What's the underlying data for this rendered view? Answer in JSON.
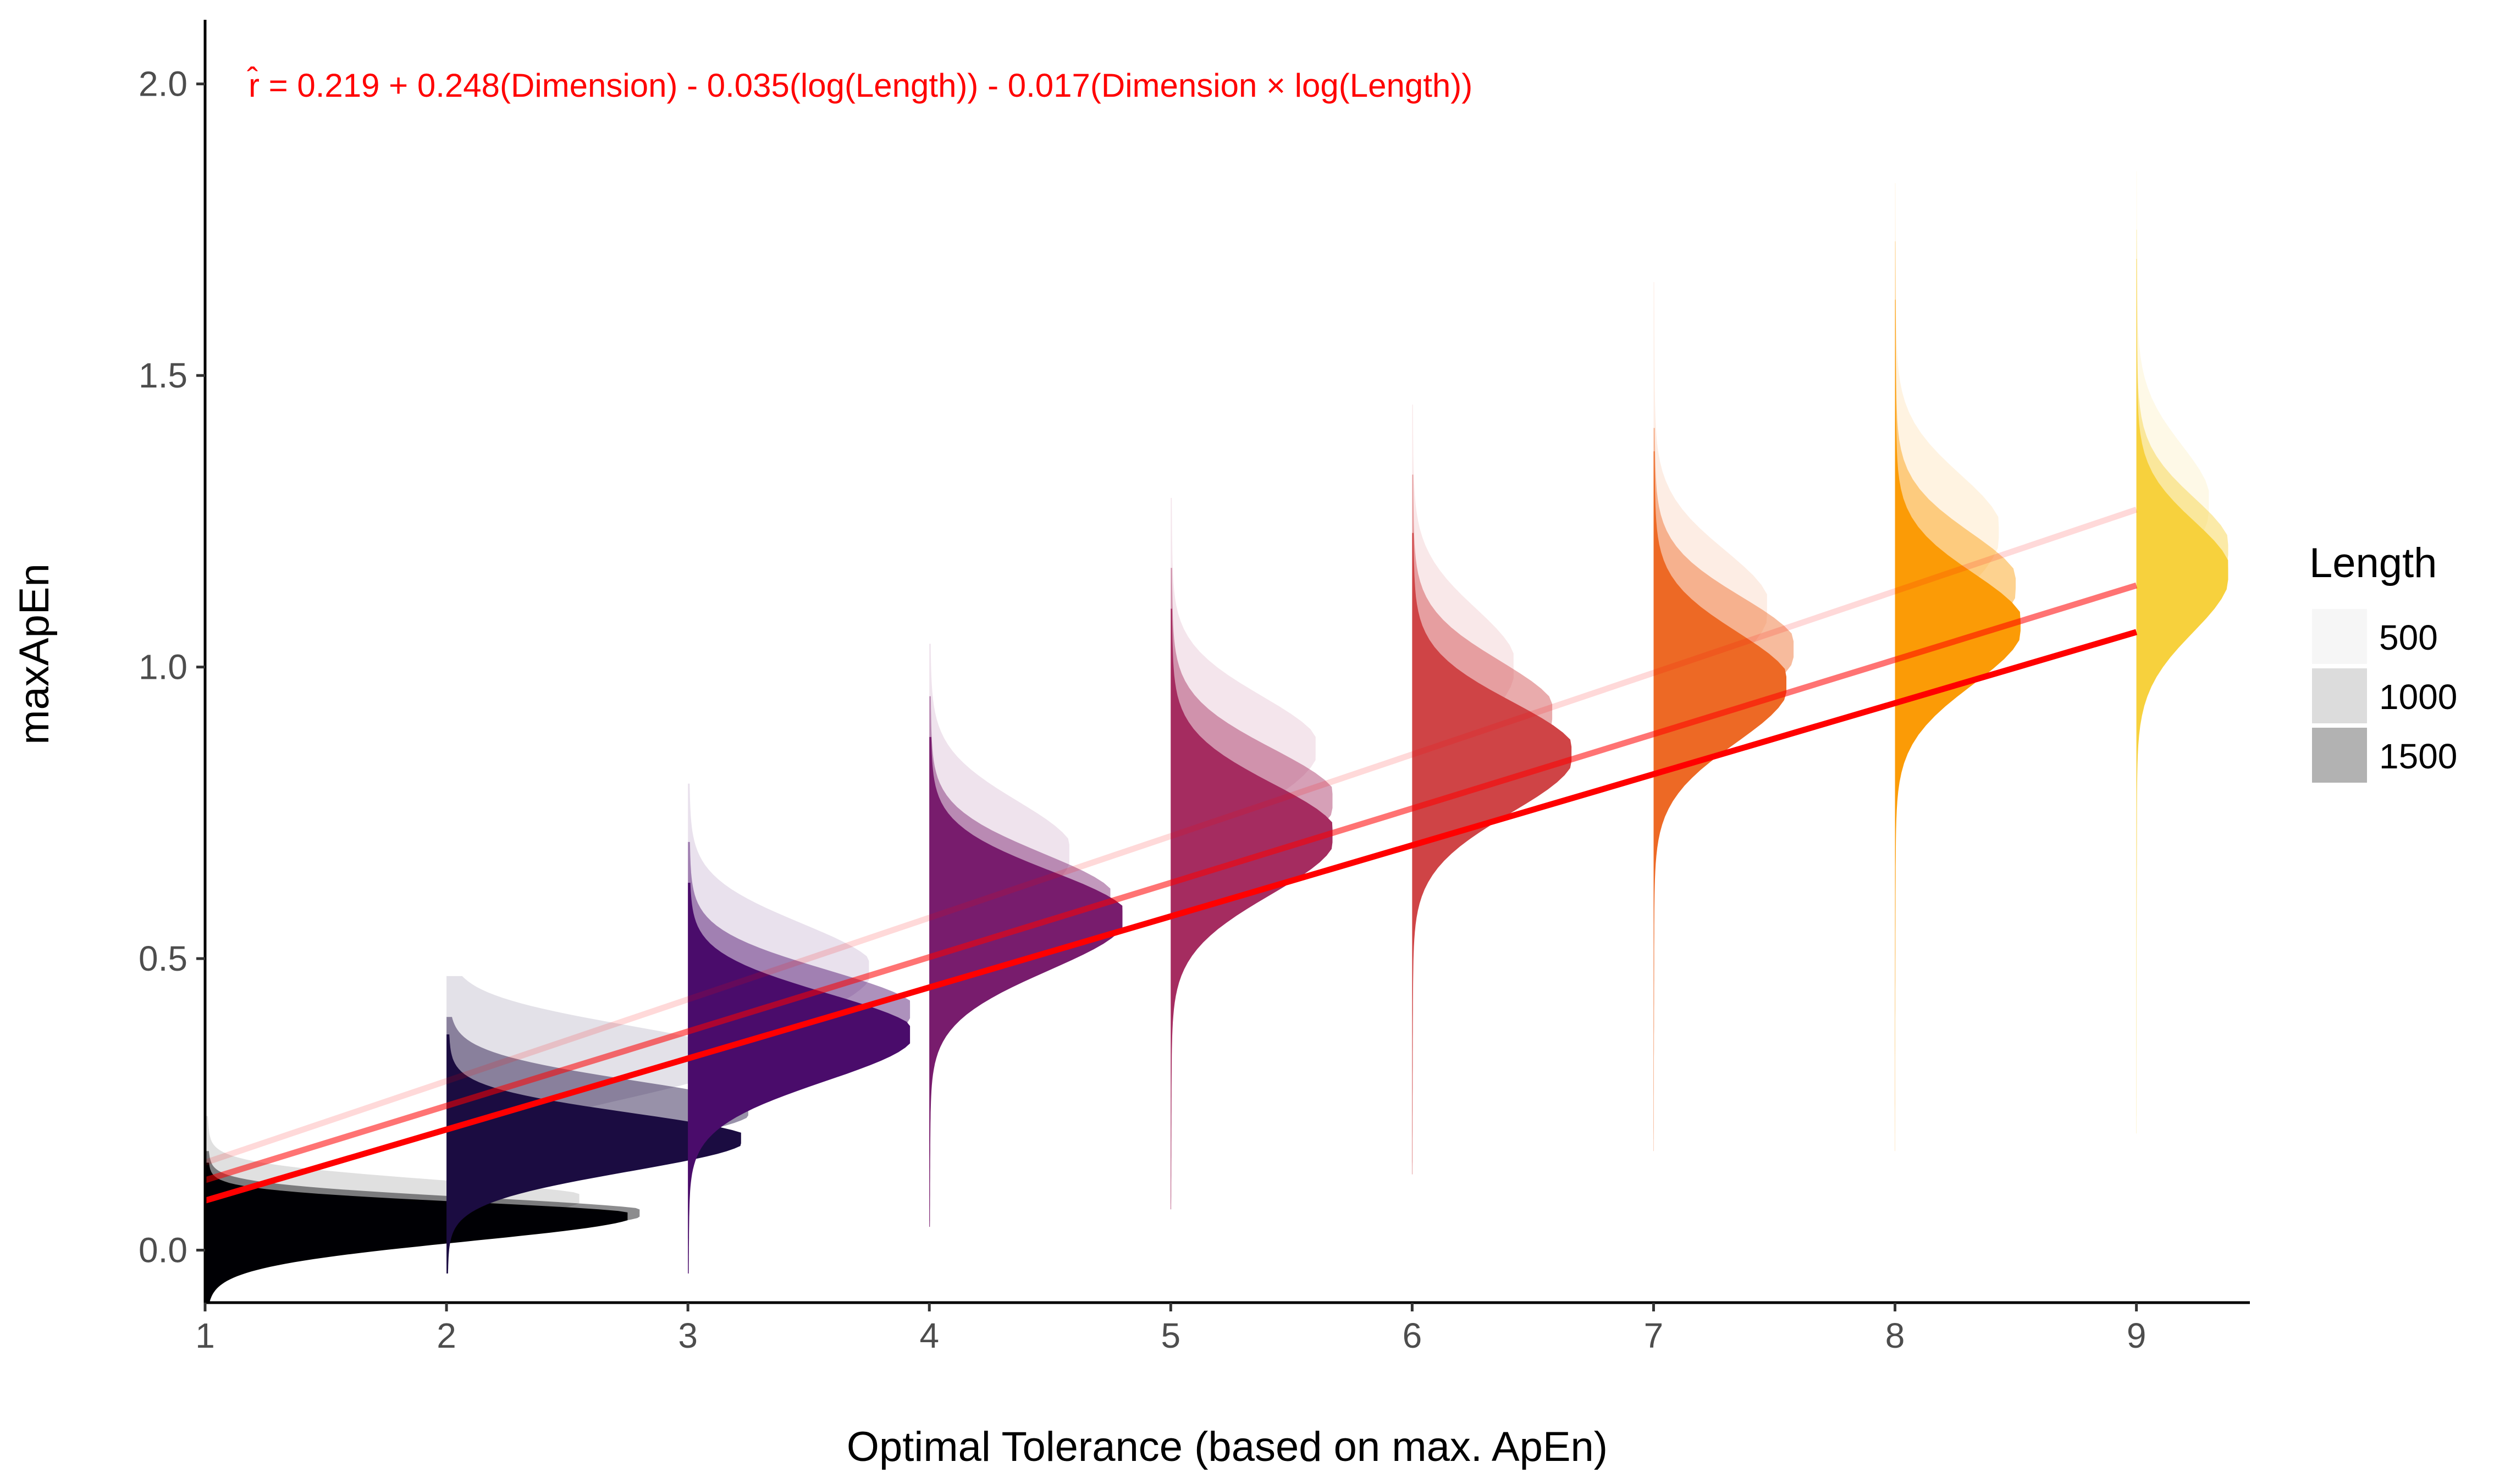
{
  "chart_data": {
    "type": "area",
    "title": "",
    "xlabel": "Optimal Tolerance (based on max. ApEn)",
    "ylabel": "maxApEn",
    "xlim": [
      1,
      9.47
    ],
    "ylim": [
      -0.09,
      2.11
    ],
    "xticks": [
      "1",
      "2",
      "3",
      "4",
      "5",
      "6",
      "7",
      "8",
      "9"
    ],
    "yticks": [
      "0.0",
      "0.5",
      "1.0",
      "1.5",
      "2.0"
    ],
    "grid": false,
    "legend": {
      "title": "Length",
      "position": "right",
      "entries": [
        "500",
        "1000",
        "1500"
      ]
    },
    "annotation": {
      "text": "r̂ = 0.219 + 0.248(Dimension) - 0.035(log(Length)) - 0.017(Dimension × log(Length))",
      "color": "#ff0000"
    },
    "dimension_colors": [
      "#000004",
      "#1b0c41",
      "#4a0c6b",
      "#781c6d",
      "#a52c60",
      "#cf4446",
      "#ed6925",
      "#fb9b06",
      "#f7d13d",
      "#fcffa4"
    ],
    "length_opacity": [
      0.12,
      0.45,
      1.0
    ],
    "densities": [
      {
        "dimension": 1,
        "length": "500",
        "mode": 0.09,
        "min": -0.05,
        "max": 0.23,
        "sd_low": 0.05,
        "sd_high": 0.03,
        "width": 1.55
      },
      {
        "dimension": 1,
        "length": "1000",
        "mode": 0.065,
        "min": -0.05,
        "max": 0.17,
        "sd_low": 0.045,
        "sd_high": 0.025,
        "width": 1.8
      },
      {
        "dimension": 1,
        "length": "1500",
        "mode": 0.06,
        "min": -0.09,
        "max": 0.15,
        "sd_low": 0.045,
        "sd_high": 0.022,
        "width": 1.75
      },
      {
        "dimension": 2,
        "length": "500",
        "mode": 0.33,
        "min": 0.05,
        "max": 0.47,
        "sd_low": 0.07,
        "sd_high": 0.055,
        "width": 1.2
      },
      {
        "dimension": 2,
        "length": "1000",
        "mode": 0.24,
        "min": 0.01,
        "max": 0.4,
        "sd_low": 0.06,
        "sd_high": 0.05,
        "width": 1.25
      },
      {
        "dimension": 2,
        "length": "1500",
        "mode": 0.19,
        "min": -0.04,
        "max": 0.37,
        "sd_low": 0.055,
        "sd_high": 0.045,
        "width": 1.22
      },
      {
        "dimension": 3,
        "length": "500",
        "mode": 0.48,
        "min": 0.06,
        "max": 0.8,
        "sd_low": 0.09,
        "sd_high": 0.08,
        "width": 0.75
      },
      {
        "dimension": 3,
        "length": "1000",
        "mode": 0.41,
        "min": 0.02,
        "max": 0.7,
        "sd_low": 0.08,
        "sd_high": 0.07,
        "width": 0.92
      },
      {
        "dimension": 3,
        "length": "1500",
        "mode": 0.37,
        "min": -0.04,
        "max": 0.63,
        "sd_low": 0.08,
        "sd_high": 0.07,
        "width": 0.92
      },
      {
        "dimension": 4,
        "length": "500",
        "mode": 0.68,
        "min": 0.07,
        "max": 1.04,
        "sd_low": 0.1,
        "sd_high": 0.09,
        "width": 0.58
      },
      {
        "dimension": 4,
        "length": "1000",
        "mode": 0.6,
        "min": 0.05,
        "max": 0.95,
        "sd_low": 0.09,
        "sd_high": 0.08,
        "width": 0.75
      },
      {
        "dimension": 4,
        "length": "1500",
        "mode": 0.57,
        "min": 0.04,
        "max": 0.88,
        "sd_low": 0.09,
        "sd_high": 0.08,
        "width": 0.8
      },
      {
        "dimension": 5,
        "length": "500",
        "mode": 0.86,
        "min": 0.1,
        "max": 1.29,
        "sd_low": 0.1,
        "sd_high": 0.09,
        "width": 0.6
      },
      {
        "dimension": 5,
        "length": "1000",
        "mode": 0.77,
        "min": 0.08,
        "max": 1.17,
        "sd_low": 0.1,
        "sd_high": 0.09,
        "width": 0.67
      },
      {
        "dimension": 5,
        "length": "1500",
        "mode": 0.71,
        "min": 0.07,
        "max": 1.1,
        "sd_low": 0.1,
        "sd_high": 0.09,
        "width": 0.67
      },
      {
        "dimension": 6,
        "length": "500",
        "mode": 1.0,
        "min": 0.17,
        "max": 1.45,
        "sd_low": 0.11,
        "sd_high": 0.1,
        "width": 0.42
      },
      {
        "dimension": 6,
        "length": "1000",
        "mode": 0.92,
        "min": 0.15,
        "max": 1.33,
        "sd_low": 0.1,
        "sd_high": 0.09,
        "width": 0.58
      },
      {
        "dimension": 6,
        "length": "1500",
        "mode": 0.85,
        "min": 0.13,
        "max": 1.23,
        "sd_low": 0.1,
        "sd_high": 0.09,
        "width": 0.66
      },
      {
        "dimension": 7,
        "length": "500",
        "mode": 1.1,
        "min": 0.2,
        "max": 1.66,
        "sd_low": 0.11,
        "sd_high": 0.1,
        "width": 0.47
      },
      {
        "dimension": 7,
        "length": "1000",
        "mode": 1.03,
        "min": 0.19,
        "max": 1.41,
        "sd_low": 0.1,
        "sd_high": 0.09,
        "width": 0.58
      },
      {
        "dimension": 7,
        "length": "1500",
        "mode": 0.97,
        "min": 0.17,
        "max": 1.37,
        "sd_low": 0.1,
        "sd_high": 0.09,
        "width": 0.55
      },
      {
        "dimension": 8,
        "length": "500",
        "mode": 1.23,
        "min": 0.22,
        "max": 1.83,
        "sd_low": 0.11,
        "sd_high": 0.1,
        "width": 0.43
      },
      {
        "dimension": 8,
        "length": "1000",
        "mode": 1.14,
        "min": 0.2,
        "max": 1.73,
        "sd_low": 0.1,
        "sd_high": 0.09,
        "width": 0.5
      },
      {
        "dimension": 8,
        "length": "1500",
        "mode": 1.07,
        "min": 0.17,
        "max": 1.63,
        "sd_low": 0.1,
        "sd_high": 0.09,
        "width": 0.52
      },
      {
        "dimension": 9,
        "length": "500",
        "mode": 1.28,
        "min": 0.26,
        "max": 1.85,
        "sd_low": 0.11,
        "sd_high": 0.1,
        "width": 0.3
      },
      {
        "dimension": 9,
        "length": "1000",
        "mode": 1.2,
        "min": 0.23,
        "max": 1.75,
        "sd_low": 0.1,
        "sd_high": 0.09,
        "width": 0.38
      },
      {
        "dimension": 9,
        "length": "1500",
        "mode": 1.16,
        "min": 0.2,
        "max": 1.7,
        "sd_low": 0.1,
        "sd_high": 0.09,
        "width": 0.38
      }
    ],
    "regression_lines": [
      {
        "length": "500",
        "x": [
          1,
          9
        ],
        "y": [
          0.15,
          1.27
        ],
        "color": "#ff0000",
        "opacity": 0.15
      },
      {
        "length": "1000",
        "x": [
          1,
          9
        ],
        "y": [
          0.12,
          1.14
        ],
        "color": "#ff0000",
        "opacity": 0.55
      },
      {
        "length": "1500",
        "x": [
          1,
          9
        ],
        "y": [
          0.085,
          1.06
        ],
        "color": "#ff0000",
        "opacity": 1.0
      }
    ]
  }
}
